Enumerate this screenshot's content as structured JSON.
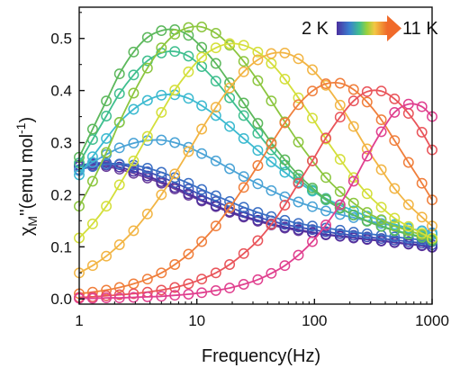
{
  "chart_data": {
    "type": "scatter",
    "title": "",
    "xlabel": "Frequency(Hz)",
    "ylabel": "χ_M''(emu mol⁻¹)",
    "ylabel_parts": {
      "chi": "χ",
      "sub": "M",
      "rest": "''(emu mol",
      "sup": "-1",
      "close": ")"
    },
    "x_scale": "log",
    "xlim": [
      1,
      1000
    ],
    "ylim": [
      -0.01,
      0.56
    ],
    "x_ticks": [
      1,
      10,
      100,
      1000
    ],
    "x_tick_labels": [
      "1",
      "10",
      "100",
      "1000"
    ],
    "y_ticks": [
      0.0,
      0.1,
      0.2,
      0.3,
      0.4,
      0.5
    ],
    "y_tick_labels": [
      "0.0",
      "0.1",
      "0.2",
      "0.3",
      "0.4",
      "0.5"
    ],
    "grid": false,
    "legend": {
      "placement": "top-right",
      "from_label": "2 K",
      "to_label": "11 K"
    },
    "markers": "open circles (data) with solid fit lines",
    "x": [
      1,
      1.3,
      1.7,
      2.2,
      2.9,
      3.8,
      5,
      6.5,
      8.5,
      11,
      14.5,
      19,
      25,
      33,
      43,
      56,
      73,
      96,
      125,
      165,
      215,
      280,
      370,
      480,
      630,
      820,
      1000
    ],
    "series": [
      {
        "color": "#6a3d9a",
        "values": [
          0.254,
          0.256,
          0.254,
          0.249,
          0.241,
          0.232,
          0.222,
          0.211,
          0.199,
          0.188,
          0.177,
          0.166,
          0.157,
          0.149,
          0.142,
          0.136,
          0.131,
          0.127,
          0.123,
          0.12,
          0.117,
          0.114,
          0.111,
          0.108,
          0.105,
          0.102,
          0.099
        ]
      },
      {
        "color": "#4c2f9f",
        "values": [
          0.257,
          0.259,
          0.257,
          0.253,
          0.245,
          0.236,
          0.225,
          0.214,
          0.202,
          0.19,
          0.179,
          0.168,
          0.159,
          0.151,
          0.144,
          0.138,
          0.133,
          0.128,
          0.124,
          0.121,
          0.118,
          0.115,
          0.112,
          0.109,
          0.106,
          0.103,
          0.1
        ]
      },
      {
        "color": "#3d4fb5",
        "values": [
          0.256,
          0.26,
          0.261,
          0.258,
          0.252,
          0.244,
          0.234,
          0.223,
          0.211,
          0.199,
          0.187,
          0.176,
          0.166,
          0.157,
          0.15,
          0.143,
          0.138,
          0.133,
          0.129,
          0.125,
          0.122,
          0.119,
          0.116,
          0.113,
          0.11,
          0.107,
          0.104
        ]
      },
      {
        "color": "#3b6fc4",
        "values": [
          0.248,
          0.254,
          0.258,
          0.259,
          0.257,
          0.251,
          0.243,
          0.233,
          0.222,
          0.21,
          0.198,
          0.187,
          0.176,
          0.166,
          0.158,
          0.151,
          0.145,
          0.14,
          0.136,
          0.132,
          0.128,
          0.125,
          0.122,
          0.119,
          0.116,
          0.113,
          0.11
        ]
      },
      {
        "color": "#4aa3d6",
        "values": [
          0.246,
          0.262,
          0.277,
          0.29,
          0.299,
          0.304,
          0.305,
          0.3,
          0.291,
          0.279,
          0.265,
          0.25,
          0.235,
          0.221,
          0.208,
          0.196,
          0.186,
          0.177,
          0.169,
          0.162,
          0.156,
          0.15,
          0.145,
          0.14,
          0.135,
          0.131,
          0.127
        ]
      },
      {
        "color": "#3cbad0",
        "values": [
          0.238,
          0.273,
          0.308,
          0.339,
          0.364,
          0.381,
          0.391,
          0.392,
          0.385,
          0.371,
          0.352,
          0.331,
          0.308,
          0.285,
          0.263,
          0.243,
          0.224,
          0.207,
          0.193,
          0.18,
          0.169,
          0.159,
          0.151,
          0.143,
          0.136,
          0.13,
          0.124
        ]
      },
      {
        "color": "#3fbf8f",
        "values": [
          0.261,
          0.306,
          0.351,
          0.394,
          0.43,
          0.457,
          0.472,
          0.475,
          0.466,
          0.446,
          0.418,
          0.386,
          0.352,
          0.318,
          0.286,
          0.257,
          0.231,
          0.209,
          0.19,
          0.174,
          0.161,
          0.15,
          0.14,
          0.132,
          0.125,
          0.119,
          0.114
        ]
      },
      {
        "color": "#5cb85c",
        "values": [
          0.272,
          0.326,
          0.38,
          0.432,
          0.474,
          0.502,
          0.515,
          0.517,
          0.506,
          0.483,
          0.452,
          0.415,
          0.376,
          0.337,
          0.3,
          0.267,
          0.238,
          0.213,
          0.192,
          0.175,
          0.161,
          0.149,
          0.139,
          0.131,
          0.124,
          0.118,
          0.112
        ]
      },
      {
        "color": "#8cc63f",
        "values": [
          0.178,
          0.226,
          0.281,
          0.339,
          0.395,
          0.443,
          0.482,
          0.508,
          0.521,
          0.522,
          0.51,
          0.487,
          0.456,
          0.419,
          0.38,
          0.34,
          0.301,
          0.265,
          0.233,
          0.206,
          0.184,
          0.166,
          0.152,
          0.14,
          0.131,
          0.123,
          0.116
        ]
      },
      {
        "color": "#d4df3a",
        "values": [
          0.117,
          0.144,
          0.178,
          0.219,
          0.265,
          0.312,
          0.358,
          0.401,
          0.436,
          0.464,
          0.482,
          0.49,
          0.487,
          0.474,
          0.452,
          0.422,
          0.386,
          0.347,
          0.307,
          0.268,
          0.233,
          0.202,
          0.176,
          0.155,
          0.139,
          0.126,
          0.116
        ]
      },
      {
        "color": "#f2b544",
        "values": [
          0.05,
          0.064,
          0.082,
          0.104,
          0.131,
          0.163,
          0.2,
          0.24,
          0.283,
          0.326,
          0.368,
          0.405,
          0.436,
          0.459,
          0.471,
          0.472,
          0.461,
          0.44,
          0.41,
          0.372,
          0.331,
          0.288,
          0.248,
          0.212,
          0.181,
          0.157,
          0.14
        ]
      },
      {
        "color": "#f07f3c",
        "values": [
          0.01,
          0.013,
          0.017,
          0.022,
          0.029,
          0.038,
          0.05,
          0.066,
          0.086,
          0.11,
          0.14,
          0.175,
          0.214,
          0.256,
          0.298,
          0.338,
          0.373,
          0.399,
          0.413,
          0.414,
          0.402,
          0.378,
          0.344,
          0.304,
          0.262,
          0.222,
          0.19
        ]
      },
      {
        "color": "#e9545a",
        "values": [
          0.003,
          0.004,
          0.006,
          0.008,
          0.01,
          0.013,
          0.017,
          0.022,
          0.029,
          0.038,
          0.05,
          0.066,
          0.087,
          0.112,
          0.143,
          0.18,
          0.222,
          0.265,
          0.309,
          0.349,
          0.38,
          0.398,
          0.399,
          0.384,
          0.356,
          0.32,
          0.286
        ]
      },
      {
        "color": "#e0408f",
        "values": [
          0.001,
          0.001,
          0.002,
          0.002,
          0.003,
          0.004,
          0.005,
          0.007,
          0.009,
          0.012,
          0.016,
          0.021,
          0.028,
          0.037,
          0.049,
          0.064,
          0.084,
          0.11,
          0.142,
          0.181,
          0.226,
          0.274,
          0.321,
          0.358,
          0.374,
          0.369,
          0.35
        ]
      }
    ]
  }
}
